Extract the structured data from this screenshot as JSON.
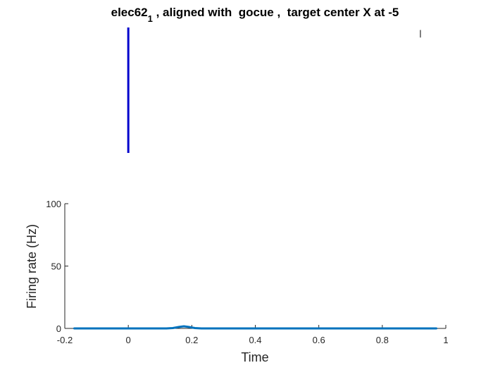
{
  "chart_data": [
    {
      "type": "line",
      "subtype": "raster",
      "title_main": "elec62",
      "title_subscript": "1",
      "title_rest": " , aligned with  gocue ,  target center X at -5",
      "xlim": [
        -0.2,
        1.0
      ],
      "axes_visible": false,
      "series": [
        {
          "color": "#0000cc",
          "x": [
            0.0,
            0.0
          ],
          "y": [
            0,
            1
          ]
        },
        {
          "color": "#000000",
          "x": [
            0.92,
            0.92
          ],
          "y": [
            0.92,
            0.98
          ]
        }
      ]
    },
    {
      "type": "line",
      "xlabel": "Time",
      "ylabel": "Firing rate (Hz)",
      "xlim": [
        -0.2,
        1.0
      ],
      "ylim": [
        0,
        100
      ],
      "xticks": [
        -0.2,
        0,
        0.2,
        0.4,
        0.6,
        0.8,
        1
      ],
      "xtick_labels": [
        "-0.2",
        "0",
        "0.2",
        "0.4",
        "0.6",
        "0.8",
        "1"
      ],
      "yticks": [
        0,
        50,
        100
      ],
      "ytick_labels": [
        "0",
        "50",
        "100"
      ],
      "grid": false,
      "series": [
        {
          "color": "#0072bd",
          "x": [
            -0.17,
            0.0,
            0.12,
            0.14,
            0.16,
            0.175,
            0.19,
            0.21,
            0.23,
            0.4,
            0.6,
            0.8,
            0.97
          ],
          "y": [
            0,
            0,
            0,
            0.3,
            1.2,
            1.7,
            1.2,
            0.3,
            0,
            0,
            0,
            0,
            0
          ]
        }
      ]
    }
  ]
}
